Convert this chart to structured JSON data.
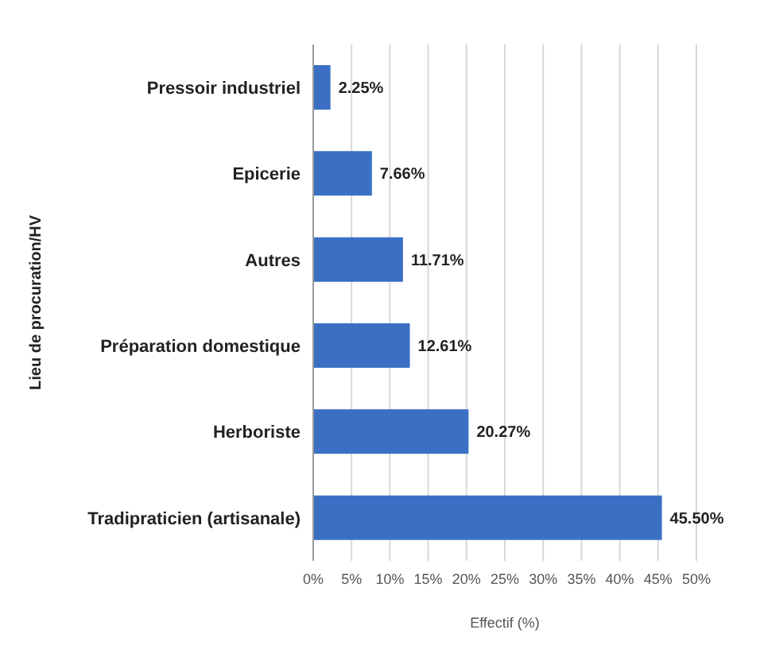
{
  "chart_data": {
    "type": "bar",
    "orientation": "horizontal",
    "xlabel": "Effectif (%)",
    "ylabel": "Lieu de procuration/HV",
    "categories": [
      "Pressoir industriel",
      "Epicerie",
      "Autres",
      "Préparation domestique",
      "Herboriste",
      "Tradipraticien (artisanale)"
    ],
    "values": [
      2.25,
      7.66,
      11.71,
      12.61,
      20.27,
      45.5
    ],
    "value_labels": [
      "2.25%",
      "7.66%",
      "11.71%",
      "12.61%",
      "20.27%",
      "45.50%"
    ],
    "color": "#3a6fc4",
    "xlim": [
      0,
      50
    ],
    "xticks": [
      {
        "value": 0,
        "label": "0%"
      },
      {
        "value": 5,
        "label": "5%"
      },
      {
        "value": 10,
        "label": "10%"
      },
      {
        "value": 15,
        "label": "15%"
      },
      {
        "value": 20,
        "label": "20%"
      },
      {
        "value": 25,
        "label": "25%"
      },
      {
        "value": 30,
        "label": "30%"
      },
      {
        "value": 35,
        "label": "35%"
      },
      {
        "value": 40,
        "label": "40%"
      },
      {
        "value": 45,
        "label": "45%"
      },
      {
        "value": 50,
        "label": "50%"
      }
    ],
    "grid": "x"
  }
}
